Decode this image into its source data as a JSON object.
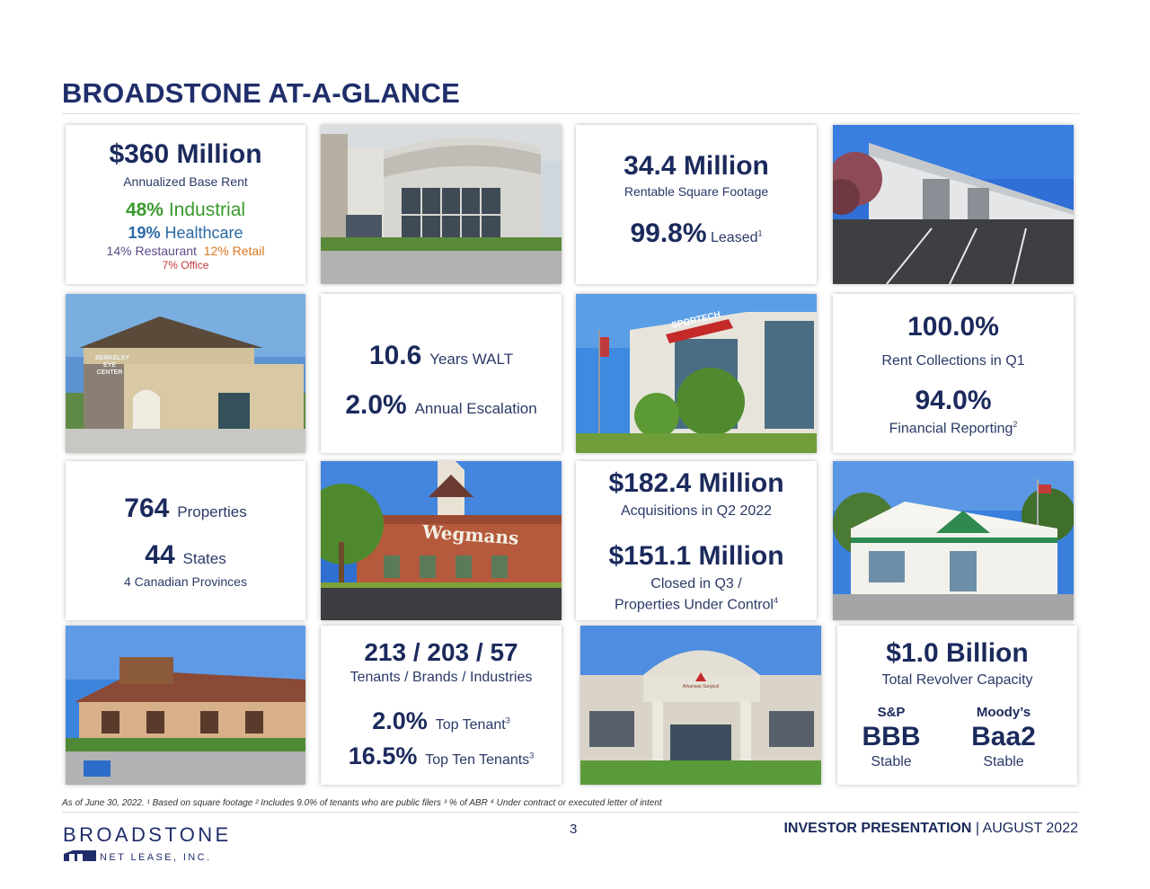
{
  "header": {
    "title": "BROADSTONE AT-A-GLANCE"
  },
  "cards": {
    "rent": {
      "value": "$360 Million",
      "label": "Annualized Base Rent",
      "industrial_pct": "48%",
      "industrial_label": "Industrial",
      "healthcare_pct": "19%",
      "healthcare_label": "Healthcare",
      "restaurant": "14% Restaurant",
      "retail": "12% Retail",
      "office": "7% Office"
    },
    "sqft": {
      "value": "34.4 Million",
      "label": "Rentable Square Footage",
      "leased_value": "99.8%",
      "leased_label": "Leased",
      "leased_sup": "1"
    },
    "walt": {
      "walt_value": "10.6",
      "walt_label": "Years WALT",
      "esc_value": "2.0%",
      "esc_label": "Annual Escalation"
    },
    "collections": {
      "value": "100.0%",
      "label": "Rent Collections in Q1",
      "reporting_value": "94.0%",
      "reporting_label": "Financial Reporting",
      "reporting_sup": "2"
    },
    "properties": {
      "count": "764",
      "count_label": "Properties",
      "states": "44",
      "states_label": "States",
      "provinces": "4 Canadian Provinces"
    },
    "acquisitions": {
      "value": "$182.4 Million",
      "label": "Acquisitions in Q2 2022",
      "closed_value": "$151.1 Million",
      "closed_label_1": "Closed in Q3 /",
      "closed_label_2": "Properties Under Control",
      "closed_sup": "4"
    },
    "tenants": {
      "value": "213 / 203 / 57",
      "label": "Tenants / Brands / Industries",
      "top_value": "2.0%",
      "top_label": "Top Tenant",
      "top_sup": "3",
      "top10_value": "16.5%",
      "top10_label": "Top Ten Tenants",
      "top10_sup": "3"
    },
    "revolver": {
      "value": "$1.0 Billion",
      "label": "Total Revolver Capacity",
      "sp_label": "S&P",
      "sp_rating": "BBB",
      "sp_outlook": "Stable",
      "moodys_label": "Moody’s",
      "moodys_rating": "Baa2",
      "moodys_outlook": "Stable"
    }
  },
  "photos": {
    "wegmans_sign": "Wegmans",
    "sportech_sign": "SPORTECH",
    "berkeley_sign_1": "BERKELEY",
    "berkeley_sign_2": "EYE CENTER",
    "surgical_sign": "Arkansas Surgical"
  },
  "footer": {
    "note": "As of June 30, 2022.  ¹ Based on square footage   ² Includes 9.0% of tenants who are public filers   ³ % of ABR   ⁴ Under contract or executed letter of intent",
    "page_number": "3",
    "presentation": "INVESTOR PRESENTATION",
    "date": "AUGUST 2022",
    "logo_name": "BROADSTONE",
    "logo_sub": "NET LEASE, INC."
  },
  "colors": {
    "navy": "#1b2a5c",
    "green": "#3a9a2e",
    "blue": "#2b6aa5",
    "purple": "#5d4b8a",
    "orange": "#d9781e",
    "red": "#c23a3a"
  }
}
